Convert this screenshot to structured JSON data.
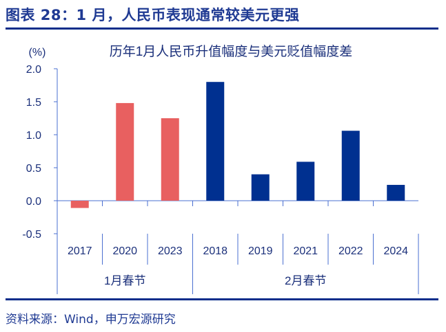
{
  "header": {
    "title": "图表 28：1 月，人民币表现通常较美元更强"
  },
  "footer": {
    "source": "资料来源：Wind，申万宏源研究"
  },
  "chart_data": {
    "type": "bar",
    "title": "历年1月人民币升值幅度与美元贬值幅度差",
    "ylabel": "(%)",
    "ylim": [
      -0.5,
      2.0
    ],
    "yticks": [
      "2.0",
      "1.5",
      "1.0",
      "0.5",
      "0.0",
      "-0.5"
    ],
    "categories": [
      "2017",
      "2020",
      "2023",
      "2018",
      "2019",
      "2021",
      "2022",
      "2024"
    ],
    "values": [
      -0.11,
      1.48,
      1.25,
      1.8,
      0.4,
      0.59,
      1.06,
      0.24
    ],
    "groups": [
      {
        "label": "1月春节",
        "count": 3,
        "color": "#e86060"
      },
      {
        "label": "2月春节",
        "count": 5,
        "color": "#003090"
      }
    ],
    "grid": false,
    "legend": "none"
  }
}
